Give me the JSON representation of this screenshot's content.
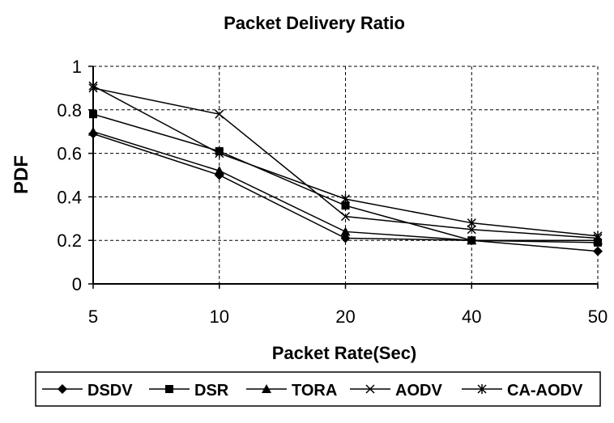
{
  "chart_data": {
    "type": "line",
    "title": "Packet Delivery Ratio",
    "xlabel": "Packet Rate(Sec)",
    "ylabel": "PDF",
    "categories": [
      "5",
      "10",
      "20",
      "40",
      "50"
    ],
    "ylim": [
      0,
      1
    ],
    "yticks": [
      "0",
      "0.2",
      "0.4",
      "0.6",
      "0.8",
      "1"
    ],
    "grid": true,
    "legend_position": "bottom",
    "series": [
      {
        "name": "DSDV",
        "marker": "diamond",
        "values": [
          0.69,
          0.5,
          0.21,
          0.2,
          0.15
        ]
      },
      {
        "name": "DSR",
        "marker": "square",
        "values": [
          0.78,
          0.61,
          0.36,
          0.2,
          0.19
        ]
      },
      {
        "name": "TORA",
        "marker": "triangle",
        "values": [
          0.7,
          0.52,
          0.24,
          0.2,
          0.2
        ]
      },
      {
        "name": "AODV",
        "marker": "x",
        "values": [
          0.9,
          0.78,
          0.31,
          0.25,
          0.21
        ]
      },
      {
        "name": "CA-AODV",
        "marker": "star",
        "values": [
          0.91,
          0.6,
          0.39,
          0.28,
          0.22
        ]
      }
    ]
  }
}
